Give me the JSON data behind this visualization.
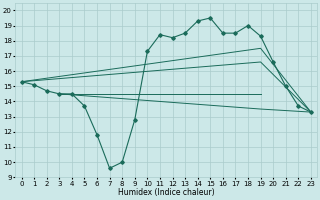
{
  "xlabel": "Humidex (Indice chaleur)",
  "bg_color": "#cce8e8",
  "line_color": "#1a6b5a",
  "grid_color": "#aacccc",
  "xlim": [
    -0.5,
    23.5
  ],
  "ylim": [
    9,
    20.5
  ],
  "yticks": [
    9,
    10,
    11,
    12,
    13,
    14,
    15,
    16,
    17,
    18,
    19,
    20
  ],
  "xticks": [
    0,
    1,
    2,
    3,
    4,
    5,
    6,
    7,
    8,
    9,
    10,
    11,
    12,
    13,
    14,
    15,
    16,
    17,
    18,
    19,
    20,
    21,
    22,
    23
  ],
  "main_x": [
    0,
    1,
    2,
    3,
    4,
    5,
    6,
    7,
    8,
    9,
    10,
    11,
    12,
    13,
    14,
    15,
    16,
    17,
    18,
    19,
    20,
    21,
    22,
    23
  ],
  "main_y": [
    15.3,
    15.1,
    14.7,
    14.5,
    14.5,
    13.7,
    11.8,
    9.6,
    10.0,
    12.8,
    17.3,
    18.4,
    18.2,
    18.5,
    19.3,
    19.5,
    18.5,
    18.5,
    19.0,
    18.3,
    16.6,
    15.0,
    13.7,
    13.3
  ],
  "straight_lines": [
    {
      "x": [
        0,
        19,
        23
      ],
      "y": [
        15.3,
        17.5,
        13.3
      ]
    },
    {
      "x": [
        0,
        19,
        23
      ],
      "y": [
        15.3,
        16.6,
        13.3
      ]
    },
    {
      "x": [
        3,
        19,
        23
      ],
      "y": [
        14.5,
        13.5,
        13.3
      ]
    },
    {
      "x": [
        3,
        19
      ],
      "y": [
        14.5,
        14.5
      ]
    }
  ]
}
